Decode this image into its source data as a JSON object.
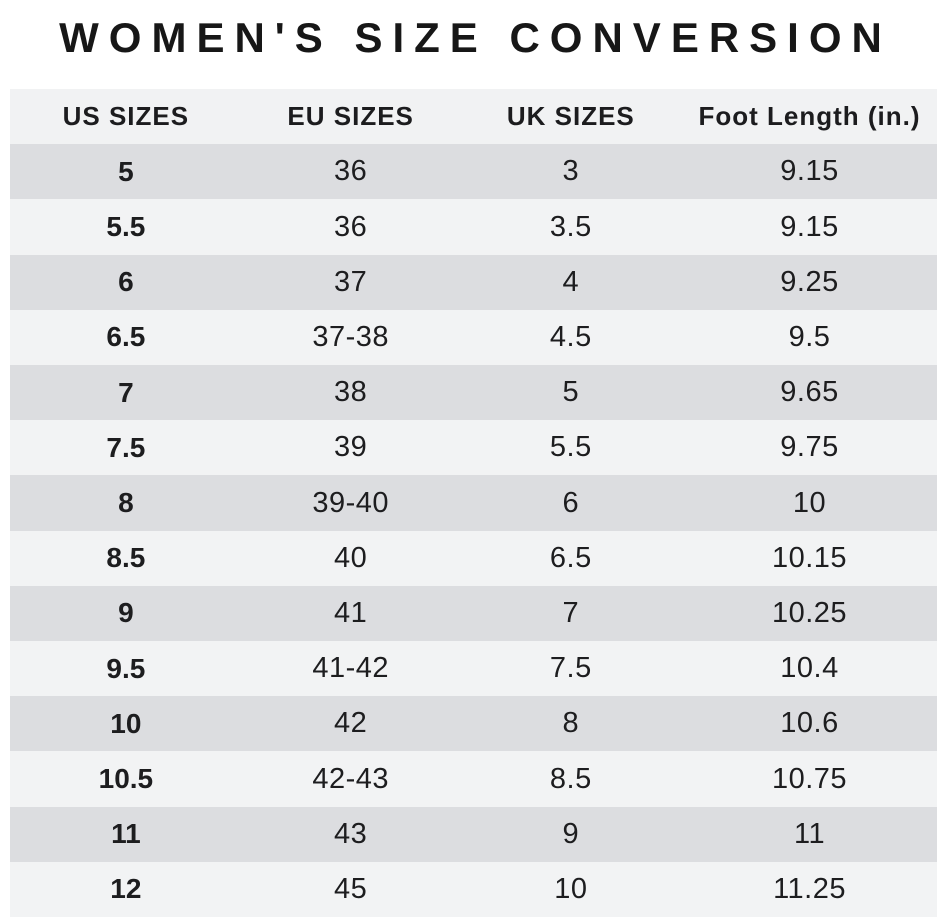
{
  "title": "WOMEN'S SIZE CONVERSION",
  "colors": {
    "background": "#ffffff",
    "header_bg": "#f1f2f3",
    "row_dark": "#dcdde0",
    "row_light": "#f2f3f4",
    "text": "#1d1d1f"
  },
  "chart_data": {
    "type": "table",
    "title": "WOMEN'S SIZE CONVERSION",
    "columns": [
      "US SIZES",
      "EU SIZES",
      "UK SIZES",
      "Foot Length (in.)"
    ],
    "rows": [
      [
        "5",
        "36",
        "3",
        "9.15"
      ],
      [
        "5.5",
        "36",
        "3.5",
        "9.15"
      ],
      [
        "6",
        "37",
        "4",
        "9.25"
      ],
      [
        "6.5",
        "37-38",
        "4.5",
        "9.5"
      ],
      [
        "7",
        "38",
        "5",
        "9.65"
      ],
      [
        "7.5",
        "39",
        "5.5",
        "9.75"
      ],
      [
        "8",
        "39-40",
        "6",
        "10"
      ],
      [
        "8.5",
        "40",
        "6.5",
        "10.15"
      ],
      [
        "9",
        "41",
        "7",
        "10.25"
      ],
      [
        "9.5",
        "41-42",
        "7.5",
        "10.4"
      ],
      [
        "10",
        "42",
        "8",
        "10.6"
      ],
      [
        "10.5",
        "42-43",
        "8.5",
        "10.75"
      ],
      [
        "11",
        "43",
        "9",
        "11"
      ],
      [
        "12",
        "45",
        "10",
        "11.25"
      ]
    ],
    "layout": {
      "striped": true,
      "first_data_row_shade": "dark",
      "us_column_bold": true
    }
  }
}
